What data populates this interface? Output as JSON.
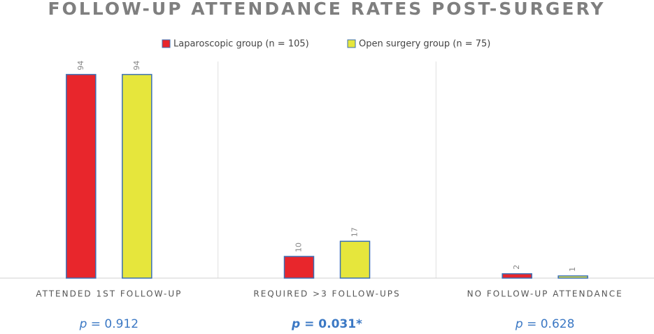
{
  "chart_data": {
    "type": "bar",
    "title": "FOLLOW-UP ATTENDANCE RATES POST-SURGERY",
    "categories": [
      "ATTENDED 1ST FOLLOW-UP",
      "REQUIRED >3 FOLLOW-UPS",
      "NO FOLLOW-UP ATTENDANCE"
    ],
    "series": [
      {
        "name": "Laparoscopic group (n = 105)",
        "color": "#e8262c",
        "values": [
          94,
          10,
          2
        ]
      },
      {
        "name": "Open surgery group (n = 75)",
        "color": "#e6e63c",
        "values": [
          94,
          17,
          1
        ]
      }
    ],
    "ylim": [
      0,
      100
    ],
    "annotations": [
      "p = 0.912",
      "p = 0.031*",
      "p = 0.628"
    ]
  }
}
